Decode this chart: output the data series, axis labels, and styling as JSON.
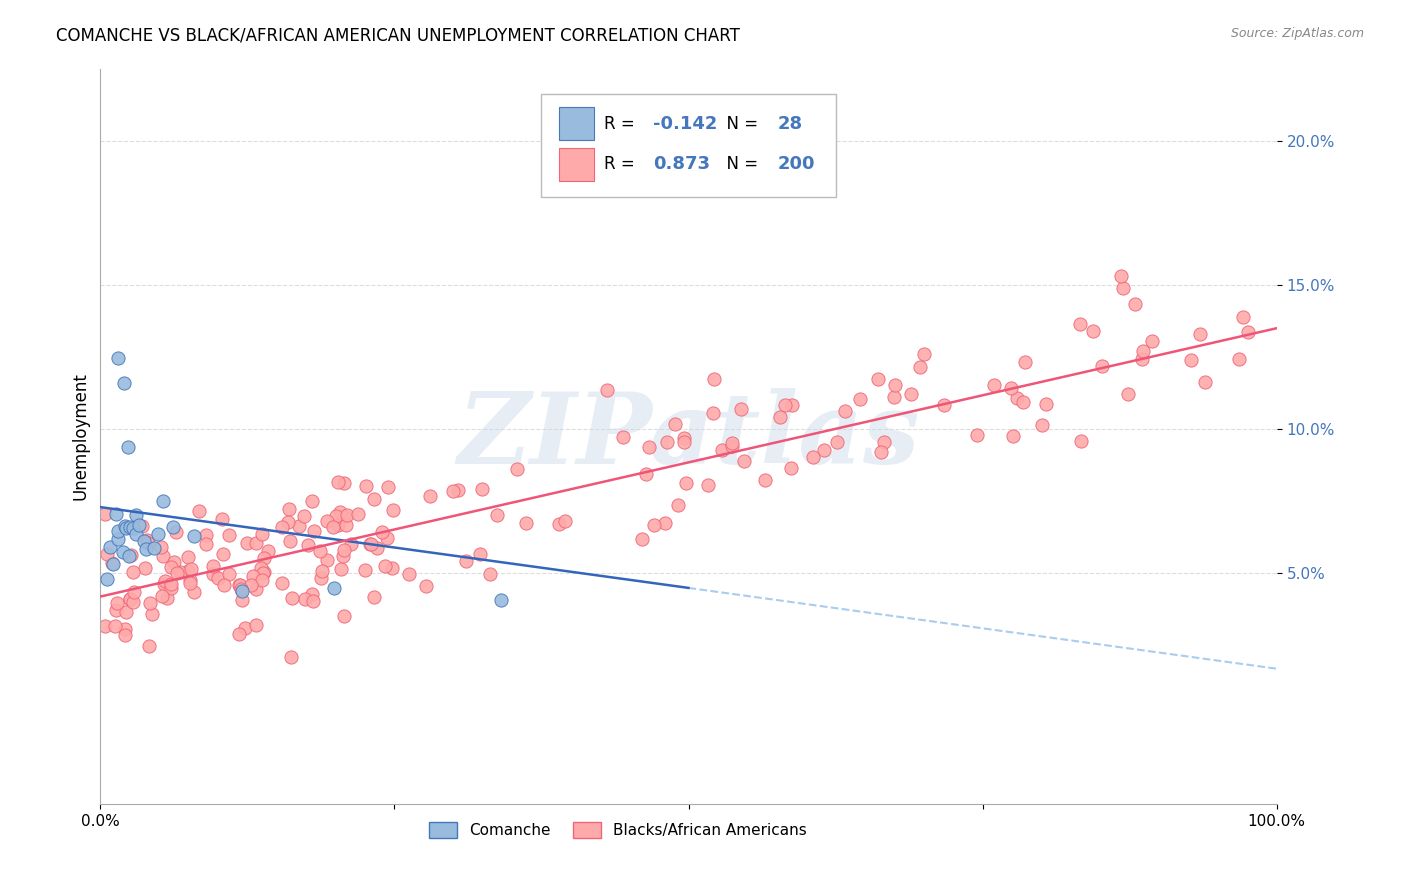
{
  "title": "COMANCHE VS BLACK/AFRICAN AMERICAN UNEMPLOYMENT CORRELATION CHART",
  "source": "Source: ZipAtlas.com",
  "ylabel": "Unemployment",
  "ytick_labels": [
    "5.0%",
    "10.0%",
    "15.0%",
    "20.0%"
  ],
  "ytick_values": [
    0.05,
    0.1,
    0.15,
    0.2
  ],
  "xlim": [
    0.0,
    1.0
  ],
  "ylim": [
    -0.03,
    0.225
  ],
  "watermark_text": "ZIPatlas",
  "legend_label1": "Comanche",
  "legend_label2": "Blacks/African Americans",
  "r1": -0.142,
  "n1": 28,
  "r2": 0.873,
  "n2": 200,
  "color_blue_fill": "#99BBDD",
  "color_blue_edge": "#4477BB",
  "color_pink_fill": "#FFAAAA",
  "color_pink_edge": "#EE6677",
  "color_blue_line": "#3366BB",
  "color_pink_line": "#EE5577",
  "color_dashed": "#AACCEE",
  "blue_line_x0": 0.0,
  "blue_line_x1": 0.5,
  "blue_line_y0": 0.073,
  "blue_line_y1": 0.045,
  "pink_line_x0": 0.0,
  "pink_line_x1": 1.0,
  "pink_line_y0": 0.042,
  "pink_line_y1": 0.135
}
